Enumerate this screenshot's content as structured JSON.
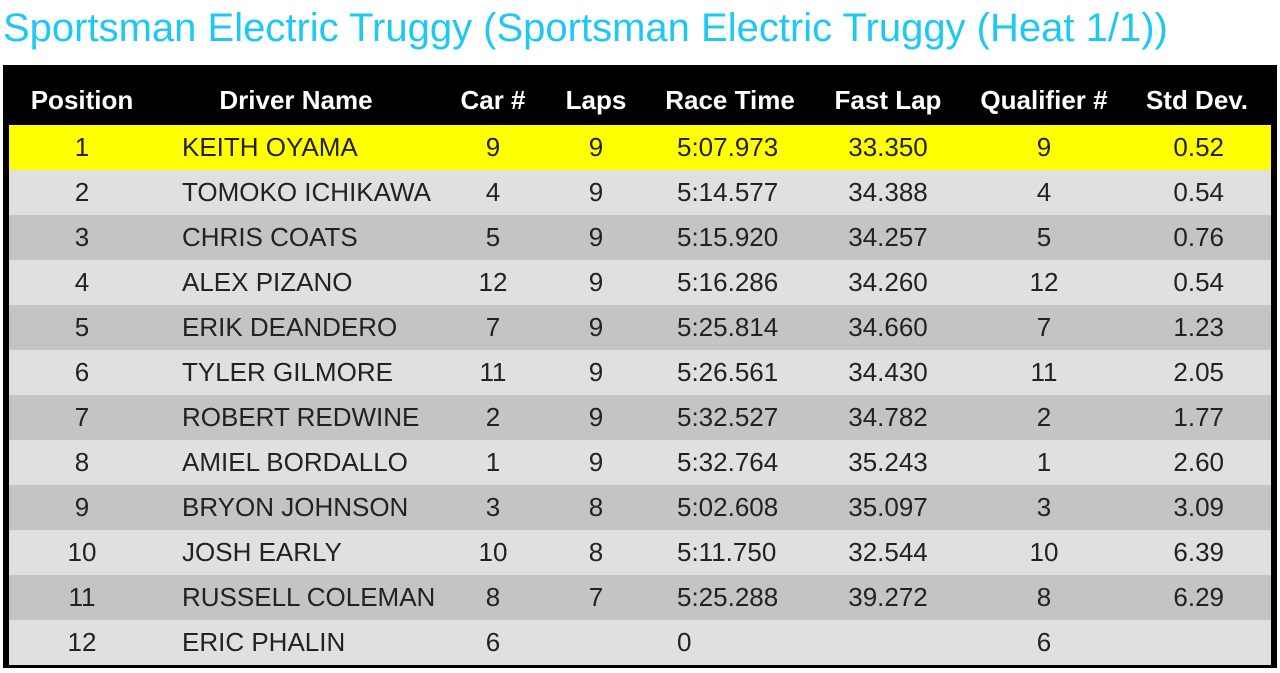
{
  "header": {
    "title": "Sportsman Electric Truggy (Sportsman Electric Truggy (Heat 1/1))"
  },
  "table": {
    "headers": [
      "Position",
      "Driver Name",
      "Car #",
      "Laps",
      "Race Time",
      "Fast Lap",
      "Qualifier #",
      "Std Dev."
    ],
    "rows": [
      [
        "1",
        "KEITH OYAMA",
        "9",
        "9",
        "5:07.973",
        "33.350",
        "9",
        "0.52"
      ],
      [
        "2",
        "TOMOKO ICHIKAWA",
        "4",
        "9",
        "5:14.577",
        "34.388",
        "4",
        "0.54"
      ],
      [
        "3",
        "CHRIS COATS",
        "5",
        "9",
        "5:15.920",
        "34.257",
        "5",
        "0.76"
      ],
      [
        "4",
        "ALEX PIZANO",
        "12",
        "9",
        "5:16.286",
        "34.260",
        "12",
        "0.54"
      ],
      [
        "5",
        "ERIK DEANDERO",
        "7",
        "9",
        "5:25.814",
        "34.660",
        "7",
        "1.23"
      ],
      [
        "6",
        "TYLER GILMORE",
        "11",
        "9",
        "5:26.561",
        "34.430",
        "11",
        "2.05"
      ],
      [
        "7",
        "ROBERT REDWINE",
        "2",
        "9",
        "5:32.527",
        "34.782",
        "2",
        "1.77"
      ],
      [
        "8",
        "AMIEL BORDALLO",
        "1",
        "9",
        "5:32.764",
        "35.243",
        "1",
        "2.60"
      ],
      [
        "9",
        "BRYON JOHNSON",
        "3",
        "8",
        "5:02.608",
        "35.097",
        "3",
        "3.09"
      ],
      [
        "10",
        "JOSH EARLY",
        "10",
        "8",
        "5:11.750",
        "32.544",
        "10",
        "6.39"
      ],
      [
        "11",
        "RUSSELL COLEMAN",
        "8",
        "7",
        "5:25.288",
        "39.272",
        "8",
        "6.29"
      ],
      [
        "12",
        "ERIC PHALIN",
        "6",
        null,
        "0",
        null,
        "6",
        null
      ]
    ]
  }
}
